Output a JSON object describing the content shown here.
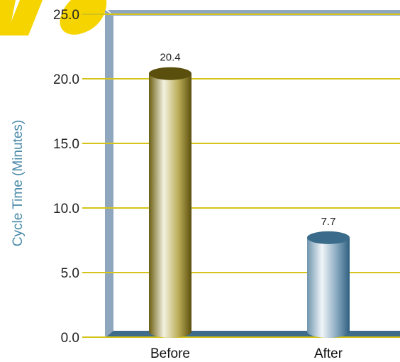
{
  "chart_data": {
    "type": "bar",
    "categories": [
      "Before",
      "After"
    ],
    "values": [
      20.4,
      7.7
    ],
    "value_labels": [
      "20.4",
      "7.7"
    ],
    "ylabel": "Cycle Time (Minutes)",
    "ylim": [
      0,
      25
    ],
    "yticks": [
      "0.0",
      "5.0",
      "10.0",
      "15.0",
      "20.0",
      "25.0"
    ],
    "grid": true,
    "bar_style": "3d-cylinder",
    "colors": {
      "grid": "#d4c41a",
      "frame": "#8fa6bf",
      "floor": "#3e6c8a",
      "axis_title": "#4a8aa8",
      "bar_before_dark": "#5b4f0d",
      "bar_before_light": "#f2f0dc",
      "bar_after_dark": "#3a6b8a",
      "bar_after_light": "#eef3f7",
      "watermark": "#f5d400"
    }
  }
}
